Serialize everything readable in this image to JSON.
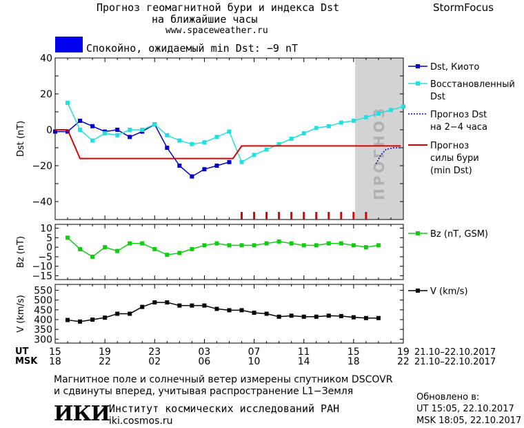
{
  "header": {
    "title_line1": "Прогноз геомагнитной бури и индекса Dst",
    "title_line2": "на ближайшие часы",
    "url": "www.spaceweather.ru",
    "brand": "StormFocus",
    "status_text": "Спокойно, ожидаемый min Dst: −9 nT",
    "status_color": "#0000ee"
  },
  "forecast_zone_label": "ПРОГНОЗ",
  "time_axis": {
    "ut_label": "UT",
    "msk_label": "MSK",
    "ut_ticks": [
      "15",
      "19",
      "23",
      "03",
      "07",
      "11",
      "15",
      "19"
    ],
    "msk_ticks": [
      "18",
      "22",
      "02",
      "06",
      "10",
      "14",
      "18",
      "22"
    ],
    "ut_date_range": "21.10–22.10.2017",
    "msk_date_range": "21.10–22.10.2017"
  },
  "footer": {
    "line1": "Магнитное поле и солнечный ветер измерены спутником DSCOVR",
    "line2": "и сдвинуты вперед, учитывая распространение L1−Земля",
    "logo_text": "ИКИ",
    "institute": "Институт космических исследований РАН",
    "institute_url": "iki.cosmos.ru",
    "updated_label": "Обновлено в:",
    "updated_ut": "UT  15:05, 22.10.2017",
    "updated_msk": "MSK 18:05, 22.10.2017"
  },
  "chart_data": [
    {
      "type": "line",
      "ylabel": "Dst (nT)",
      "ylim": [
        -50,
        40
      ],
      "xlim": [
        15,
        43
      ],
      "yticks": [
        40,
        20,
        0,
        -20,
        -40
      ],
      "series": [
        {
          "name": "Dst, Киото",
          "color": "#0000cc",
          "marker": "square",
          "x": [
            15,
            16,
            17,
            18,
            19,
            20,
            21,
            22,
            23,
            24,
            25,
            26,
            27,
            28,
            29
          ],
          "y": [
            -1,
            -1,
            5,
            2,
            -1,
            0,
            -4,
            -1,
            3,
            -10,
            -20,
            -26,
            -22,
            -20,
            -18
          ]
        },
        {
          "name": "Восстановленный Dst",
          "color": "#22e0e0",
          "marker": "square",
          "x": [
            16,
            17,
            18,
            19,
            20,
            21,
            22,
            23,
            24,
            25,
            26,
            27,
            28,
            29,
            30,
            31,
            32,
            33,
            34,
            35,
            36,
            37,
            38,
            39,
            40,
            41,
            42,
            43
          ],
          "y": [
            15,
            0,
            -6,
            -2,
            -3,
            0,
            0,
            3,
            -3,
            -6,
            -8,
            -7,
            -4,
            -1,
            -18,
            -14,
            -11,
            -8,
            -5,
            -2,
            1,
            2,
            4,
            5,
            7,
            9,
            11,
            13
          ]
        },
        {
          "name": "Прогноз Dst на 2-4 часа",
          "color": "#0000cc",
          "style": "dotted",
          "x": [
            40.8,
            41.2,
            41.6,
            42.2,
            42.8
          ],
          "y": [
            -19,
            -14,
            -11,
            -10,
            -10
          ]
        },
        {
          "name": "Прогноз силы бури (min Dst)",
          "color": "#dd0000",
          "style": "step",
          "x": [
            15,
            16,
            17,
            29.3,
            30,
            42.8
          ],
          "y": [
            0,
            0,
            -16,
            -16,
            -9,
            -9
          ]
        }
      ],
      "forecast_ticks_x": [
        30,
        31,
        32,
        33,
        34,
        35,
        36,
        37,
        38,
        39,
        40
      ]
    },
    {
      "type": "line",
      "ylabel": "Bz (nT)",
      "ylim": [
        -17,
        12
      ],
      "xlim": [
        15,
        43
      ],
      "yticks": [
        10,
        5,
        0,
        -5,
        -10,
        -15
      ],
      "series": [
        {
          "name": "Bz (nT, GSM)",
          "color": "#11cc11",
          "marker": "square",
          "x": [
            16,
            17,
            18,
            19,
            20,
            21,
            22,
            23,
            24,
            25,
            26,
            27,
            28,
            29,
            30,
            31,
            32,
            33,
            34,
            35,
            36,
            37,
            38,
            39,
            40,
            41
          ],
          "y": [
            5,
            -1,
            -5,
            0,
            -2,
            2,
            2,
            -1,
            -4,
            -3,
            -1,
            1,
            2,
            1,
            1,
            1,
            2,
            3,
            2,
            1,
            1,
            2,
            2,
            1,
            0,
            1
          ]
        }
      ]
    },
    {
      "type": "line",
      "ylabel": "V (km/s)",
      "ylim": [
        280,
        580
      ],
      "xlim": [
        15,
        43
      ],
      "yticks": [
        550,
        500,
        450,
        400,
        350,
        300
      ],
      "series": [
        {
          "name": "V (km/s)",
          "color": "#000000",
          "marker": "square",
          "x": [
            16,
            17,
            18,
            19,
            20,
            21,
            22,
            23,
            24,
            25,
            26,
            27,
            28,
            29,
            30,
            31,
            32,
            33,
            34,
            35,
            36,
            37,
            38,
            39,
            40,
            41
          ],
          "y": [
            398,
            390,
            400,
            410,
            430,
            430,
            465,
            488,
            488,
            472,
            472,
            472,
            455,
            448,
            448,
            435,
            430,
            415,
            420,
            415,
            415,
            420,
            418,
            412,
            408,
            408
          ]
        }
      ]
    }
  ]
}
